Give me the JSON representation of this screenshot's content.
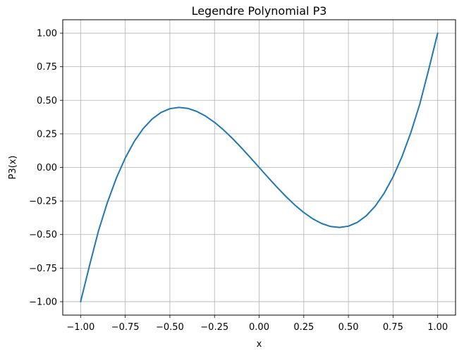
{
  "chart_data": {
    "type": "line",
    "title": "Legendre Polynomial P3",
    "xlabel": "x",
    "ylabel": "P3(x)",
    "xlim": [
      -1.1,
      1.1
    ],
    "ylim": [
      -1.1,
      1.1
    ],
    "grid": true,
    "xticks": [
      -1.0,
      -0.75,
      -0.5,
      -0.25,
      0.0,
      0.25,
      0.5,
      0.75,
      1.0
    ],
    "yticks": [
      -1.0,
      -0.75,
      -0.5,
      -0.25,
      0.0,
      0.25,
      0.5,
      0.75,
      1.0
    ],
    "xtick_labels": [
      "−1.00",
      "−0.75",
      "−0.50",
      "−0.25",
      "0.00",
      "0.25",
      "0.50",
      "0.75",
      "1.00"
    ],
    "ytick_labels": [
      "−1.00",
      "−0.75",
      "−0.50",
      "−0.25",
      "0.00",
      "0.25",
      "0.50",
      "0.75",
      "1.00"
    ],
    "series": [
      {
        "color": "#1f77b4",
        "x": [
          -1.0,
          -0.95,
          -0.9,
          -0.85,
          -0.8,
          -0.75,
          -0.7,
          -0.65,
          -0.6,
          -0.55,
          -0.5,
          -0.45,
          -0.4,
          -0.35,
          -0.3,
          -0.25,
          -0.2,
          -0.15,
          -0.1,
          -0.05,
          0.0,
          0.05,
          0.1,
          0.15,
          0.2,
          0.25,
          0.3,
          0.35,
          0.4,
          0.45,
          0.5,
          0.55,
          0.6,
          0.65,
          0.7,
          0.75,
          0.8,
          0.85,
          0.9,
          0.95,
          1.0
        ],
        "y": [
          -1.0,
          -0.7306,
          -0.4725,
          -0.2609,
          -0.08,
          0.0703,
          0.1925,
          0.2884,
          0.36,
          0.4091,
          0.4375,
          0.4472,
          0.44,
          0.4174,
          0.3825,
          0.3359,
          0.28,
          0.2166,
          0.1475,
          0.0747,
          0.0,
          -0.0747,
          -0.1475,
          -0.2166,
          -0.28,
          -0.3359,
          -0.3825,
          -0.4174,
          -0.44,
          -0.4472,
          -0.4375,
          -0.4091,
          -0.36,
          -0.2884,
          -0.1925,
          -0.0703,
          0.08,
          0.2609,
          0.4725,
          0.7306,
          1.0
        ]
      }
    ]
  }
}
